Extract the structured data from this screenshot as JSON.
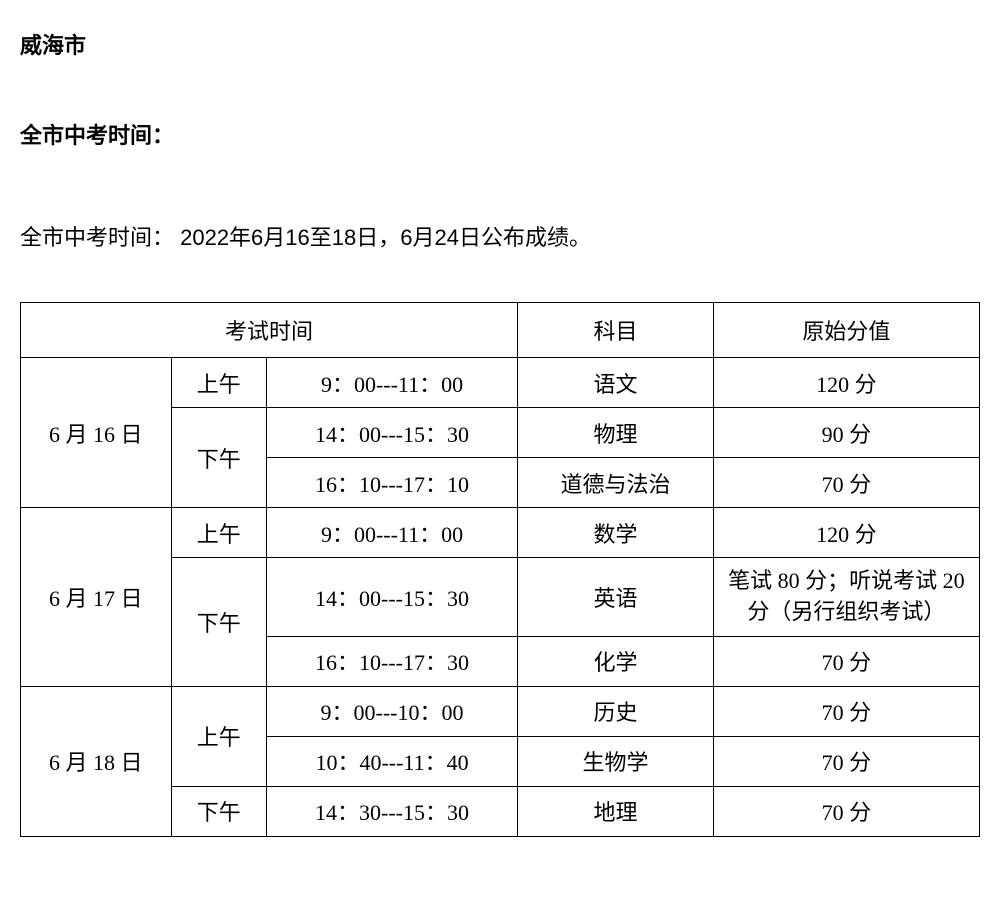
{
  "title": "威海市",
  "subtitle": "全市中考时间：",
  "description": "全市中考时间：  2022年6月16至18日，6月24日公布成绩。",
  "table": {
    "headers": {
      "exam_time": "考试时间",
      "subject": "科目",
      "score": "原始分值"
    },
    "rows": [
      {
        "date": "6 月 16 日",
        "date_rowspan": 3,
        "period": "上午",
        "period_rowspan": 1,
        "time": "9：00---11：00",
        "subject": "语文",
        "score": "120 分"
      },
      {
        "period": "下午",
        "period_rowspan": 2,
        "time": "14：00---15：30",
        "subject": "物理",
        "score": "90 分"
      },
      {
        "time": "16：10---17：10",
        "subject": "道德与法治",
        "score": "70 分"
      },
      {
        "date": "6 月 17 日",
        "date_rowspan": 3,
        "period": "上午",
        "period_rowspan": 1,
        "time": "9：00---11：00",
        "subject": "数学",
        "score": "120 分"
      },
      {
        "period": "下午",
        "period_rowspan": 2,
        "time": "14：00---15：30",
        "subject": "英语",
        "score": "笔试 80 分；听说考试 20 分（另行组织考试）",
        "score_class": "english-score"
      },
      {
        "time": "16：10---17：30",
        "subject": "化学",
        "score": "70 分"
      },
      {
        "date": "6 月 18 日",
        "date_rowspan": 3,
        "period": "上午",
        "period_rowspan": 2,
        "time": "9：00---10：00",
        "subject": "历史",
        "score": "70 分"
      },
      {
        "time": "10：40---11：40",
        "subject": "生物学",
        "score": "70 分"
      },
      {
        "period": "下午",
        "period_rowspan": 1,
        "time": "14：30---15：30",
        "subject": "地理",
        "score": "70 分"
      }
    ]
  }
}
